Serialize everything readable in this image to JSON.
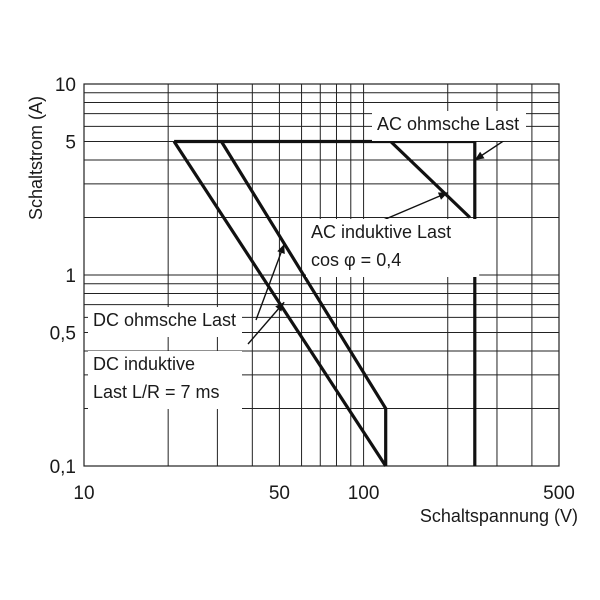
{
  "chart_data": {
    "type": "line",
    "title": "",
    "xlabel": "Schaltspannung (V)",
    "ylabel": "Schaltstrom (A)",
    "x_scale": "log",
    "y_scale": "log",
    "xlim": [
      10,
      500
    ],
    "ylim": [
      0.1,
      10
    ],
    "grid": true,
    "x_tick_labels": [
      {
        "value": 10,
        "label": "10"
      },
      {
        "value": 50,
        "label": "50"
      },
      {
        "value": 100,
        "label": "100"
      },
      {
        "value": 500,
        "label": "500"
      }
    ],
    "y_tick_labels": [
      {
        "value": 0.1,
        "label": "0,1"
      },
      {
        "value": 0.5,
        "label": "0,5"
      },
      {
        "value": 1,
        "label": "1"
      },
      {
        "value": 5,
        "label": "5"
      },
      {
        "value": 10,
        "label": "10"
      }
    ],
    "series": [
      {
        "name": "DC induktive Last L/R = 7 ms",
        "points": [
          [
            21,
            5
          ],
          [
            120,
            0.1
          ]
        ]
      },
      {
        "name": "DC ohmsche Last",
        "points": [
          [
            31,
            5
          ],
          [
            120,
            0.2
          ],
          [
            120,
            0.1
          ]
        ]
      },
      {
        "name": "AC induktive Last cos φ = 0,4",
        "points": [
          [
            125,
            5
          ],
          [
            240,
            2
          ]
        ]
      },
      {
        "name": "AC ohmsche Last",
        "points": [
          [
            21,
            5
          ],
          [
            250,
            5
          ],
          [
            250,
            0.1
          ]
        ]
      }
    ],
    "annotations": [
      {
        "id": "ac-ohm",
        "lines": [
          "AC ohmsche Last"
        ],
        "target": [
          250,
          4.0
        ]
      },
      {
        "id": "ac-ind",
        "lines": [
          "AC induktive Last",
          "cos φ = 0,4"
        ],
        "target": [
          200,
          2.7
        ]
      },
      {
        "id": "dc-ohm",
        "lines": [
          "DC ohmsche Last"
        ],
        "target": [
          52,
          1.45
        ]
      },
      {
        "id": "dc-ind",
        "lines": [
          "DC induktive",
          "Last L/R = 7 ms"
        ],
        "target": [
          52,
          0.72
        ]
      }
    ]
  }
}
